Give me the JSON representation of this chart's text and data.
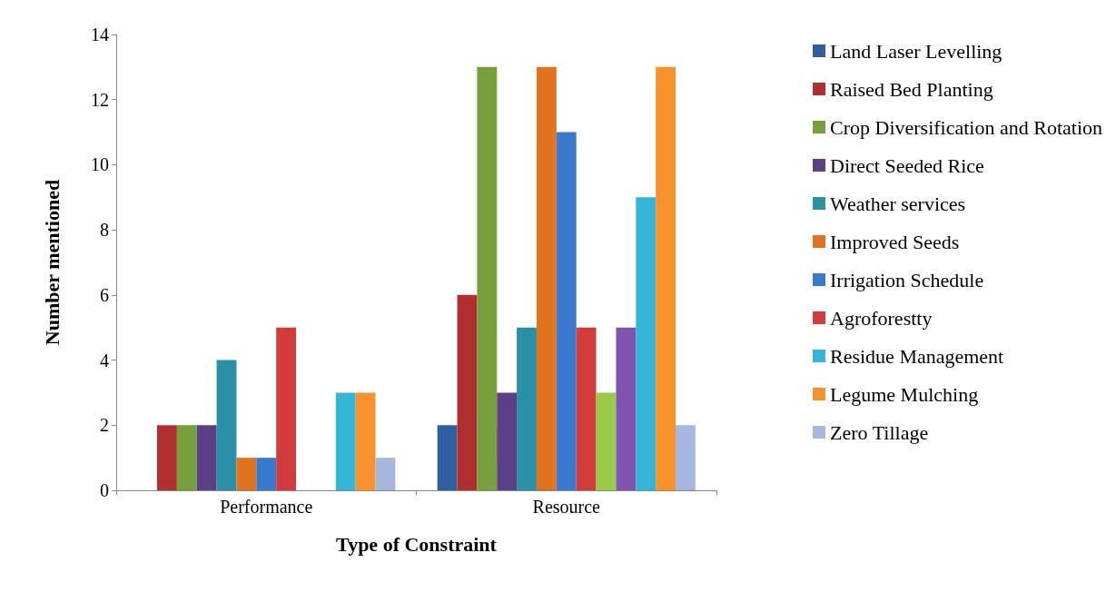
{
  "chart_data": {
    "type": "bar",
    "xlabel": "Type of Constraint",
    "ylabel": "Number mentioned",
    "categories": [
      "Performance",
      "Resource"
    ],
    "series": [
      {
        "name": "Land Laser Levelling",
        "color": "#2e5f9e",
        "values": [
          0,
          2
        ]
      },
      {
        "name": "Raised Bed Planting",
        "color": "#b03030",
        "values": [
          2,
          6
        ]
      },
      {
        "name": "Crop Diversification and Rotation",
        "color": "#77a03a",
        "values": [
          2,
          13
        ]
      },
      {
        "name": "Direct Seeded Rice",
        "color": "#5d3f87",
        "values": [
          2,
          3
        ]
      },
      {
        "name": "Weather services",
        "color": "#2b8fa6",
        "values": [
          4,
          5
        ]
      },
      {
        "name": "Improved Seeds",
        "color": "#e07320",
        "values": [
          1,
          13
        ]
      },
      {
        "name": "Irrigation Schedule",
        "color": "#3a7acc",
        "values": [
          1,
          11
        ]
      },
      {
        "name": "Agroforestty",
        "color": "#d23c3c",
        "values": [
          5,
          5
        ]
      },
      {
        "color": "#9acb48",
        "values": [
          0,
          3
        ]
      },
      {
        "color": "#7f55b0",
        "values": [
          0,
          5
        ]
      },
      {
        "name": "Residue Management",
        "color": "#35b6d6",
        "values": [
          3,
          9
        ]
      },
      {
        "name": "Legume Mulching",
        "color": "#f7922c",
        "values": [
          3,
          13
        ]
      },
      {
        "name": "Zero Tillage",
        "color": "#a6b8de",
        "values": [
          1,
          2
        ]
      }
    ],
    "ylim": [
      0,
      14
    ],
    "yticks": [
      0,
      2,
      4,
      6,
      8,
      10,
      12,
      14
    ],
    "grid": false,
    "legend": "right"
  }
}
